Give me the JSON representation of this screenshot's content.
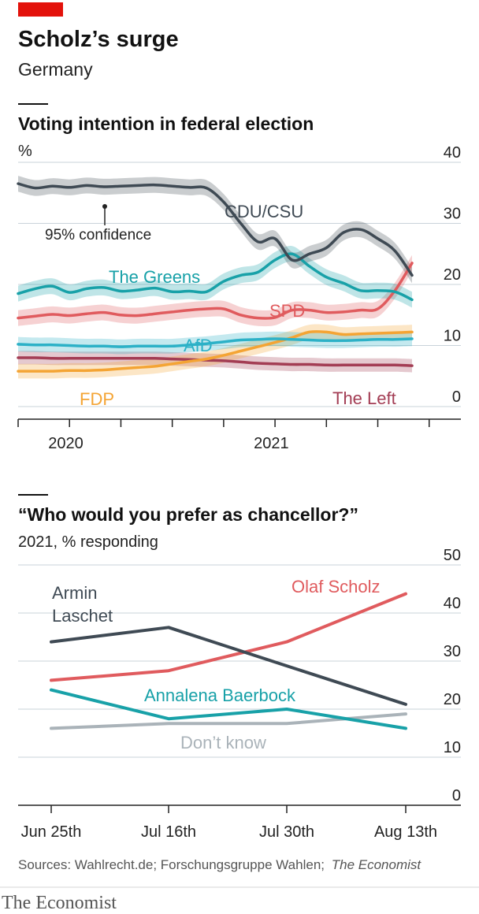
{
  "header": {
    "title": "Scholz’s surge",
    "subtitle": "Germany",
    "brand_color": "#e3120b"
  },
  "chart_data": [
    {
      "type": "line",
      "title": "Voting intention in federal election",
      "unit": "%",
      "ylim": [
        0,
        40
      ],
      "yticks": [
        0,
        10,
        20,
        30,
        40
      ],
      "xtick_labels": [
        "2020",
        "2021"
      ],
      "annotation": "95% confidence",
      "grid": true,
      "series": [
        {
          "name": "CDU/CSU",
          "color": "#3f4a54",
          "band": 1.3,
          "x": [
            "2019-10",
            "2019-11",
            "2019-12",
            "2020-01",
            "2020-02",
            "2020-03",
            "2020-04",
            "2020-05",
            "2020-06",
            "2020-07",
            "2020-08",
            "2020-09",
            "2020-10",
            "2020-11",
            "2020-12",
            "2021-01",
            "2021-02",
            "2021-03",
            "2021-04",
            "2021-05",
            "2021-06",
            "2021-07",
            "2021-08",
            "2021-09"
          ],
          "y": [
            36.5,
            35.8,
            36.1,
            35.9,
            36.2,
            36,
            36.1,
            36.2,
            36.3,
            36.1,
            35.9,
            35.8,
            33.5,
            30,
            27,
            27.5,
            24,
            25,
            26,
            28.5,
            29,
            27.5,
            25.5,
            21.5
          ]
        },
        {
          "name": "The Greens",
          "color": "#18a1a8",
          "band": 1.3,
          "x": [
            "2019-10",
            "2019-11",
            "2019-12",
            "2020-01",
            "2020-02",
            "2020-03",
            "2020-04",
            "2020-05",
            "2020-06",
            "2020-07",
            "2020-08",
            "2020-09",
            "2020-10",
            "2020-11",
            "2020-12",
            "2021-01",
            "2021-02",
            "2021-03",
            "2021-04",
            "2021-05",
            "2021-06",
            "2021-07",
            "2021-08",
            "2021-09"
          ],
          "y": [
            18.5,
            19.3,
            19.7,
            18.7,
            19.3,
            19.5,
            18.9,
            19.1,
            19.4,
            18.8,
            18.9,
            18.8,
            20.5,
            21.5,
            22,
            24,
            25,
            23,
            21.2,
            20.2,
            19,
            19,
            18.8,
            17.5
          ]
        },
        {
          "name": "SPD",
          "color": "#e05b5e",
          "band": 1.3,
          "x": [
            "2019-10",
            "2019-11",
            "2019-12",
            "2020-01",
            "2020-02",
            "2020-03",
            "2020-04",
            "2020-05",
            "2020-06",
            "2020-07",
            "2020-08",
            "2020-09",
            "2020-10",
            "2020-11",
            "2020-12",
            "2021-01",
            "2021-02",
            "2021-03",
            "2021-04",
            "2021-05",
            "2021-06",
            "2021-07",
            "2021-08",
            "2021-09"
          ],
          "y": [
            14.5,
            14.8,
            15.1,
            14.9,
            15.2,
            15.4,
            15,
            14.9,
            15.2,
            15.5,
            15.8,
            16,
            16,
            15,
            14.5,
            14.6,
            15.8,
            15.8,
            15.4,
            15.5,
            15.8,
            16,
            19,
            23.5
          ]
        },
        {
          "name": "AfD",
          "color": "#2cb1c7",
          "band": 1.2,
          "x": [
            "2019-10",
            "2019-11",
            "2019-12",
            "2020-01",
            "2020-02",
            "2020-03",
            "2020-04",
            "2020-05",
            "2020-06",
            "2020-07",
            "2020-08",
            "2020-09",
            "2020-10",
            "2020-11",
            "2020-12",
            "2021-01",
            "2021-02",
            "2021-03",
            "2021-04",
            "2021-05",
            "2021-06",
            "2021-07",
            "2021-08",
            "2021-09"
          ],
          "y": [
            10.2,
            10.1,
            10.1,
            10,
            9.9,
            9.9,
            9.8,
            9.9,
            9.9,
            9.9,
            10.1,
            10.3,
            10.6,
            10.9,
            11,
            11.1,
            11,
            10.9,
            10.8,
            10.8,
            10.9,
            11,
            11,
            11.1
          ]
        },
        {
          "name": "FDP",
          "color": "#f4a434",
          "band": 1.2,
          "x": [
            "2019-10",
            "2019-11",
            "2019-12",
            "2020-01",
            "2020-02",
            "2020-03",
            "2020-04",
            "2020-05",
            "2020-06",
            "2020-07",
            "2020-08",
            "2020-09",
            "2020-10",
            "2020-11",
            "2020-12",
            "2021-01",
            "2021-02",
            "2021-03",
            "2021-04",
            "2021-05",
            "2021-06",
            "2021-07",
            "2021-08",
            "2021-09"
          ],
          "y": [
            5.8,
            5.8,
            5.8,
            5.9,
            5.9,
            6,
            6.2,
            6.4,
            6.6,
            7,
            7.4,
            7.8,
            8.4,
            9.1,
            9.8,
            10.5,
            11.3,
            12.2,
            12.2,
            11.8,
            11.9,
            12,
            12.1,
            12.2
          ]
        },
        {
          "name": "The Left",
          "color": "#a33d54",
          "band": 1.1,
          "x": [
            "2019-10",
            "2019-11",
            "2019-12",
            "2020-01",
            "2020-02",
            "2020-03",
            "2020-04",
            "2020-05",
            "2020-06",
            "2020-07",
            "2020-08",
            "2020-09",
            "2020-10",
            "2020-11",
            "2020-12",
            "2021-01",
            "2021-02",
            "2021-03",
            "2021-04",
            "2021-05",
            "2021-06",
            "2021-07",
            "2021-08",
            "2021-09"
          ],
          "y": [
            8,
            8,
            7.9,
            7.9,
            7.9,
            7.9,
            7.9,
            7.9,
            7.9,
            7.8,
            7.7,
            7.6,
            7.5,
            7.3,
            7.1,
            7,
            6.9,
            6.9,
            6.8,
            6.8,
            6.8,
            6.8,
            6.8,
            6.7
          ]
        }
      ]
    },
    {
      "type": "line",
      "title": "“Who would you prefer as chancellor?”",
      "subtitle": "2021, % responding",
      "ylim": [
        0,
        50
      ],
      "yticks": [
        0,
        10,
        20,
        30,
        40,
        50
      ],
      "categories": [
        "Jun 25th",
        "Jul 16th",
        "Jul 30th",
        "Aug 13th"
      ],
      "grid": true,
      "series": [
        {
          "name": "Armin Laschet",
          "label_lines": [
            "Armin",
            "Laschet"
          ],
          "color": "#3f4a54",
          "values": [
            34,
            37,
            29,
            21
          ]
        },
        {
          "name": "Olaf Scholz",
          "color": "#e05b5e",
          "values": [
            26,
            28,
            34,
            44
          ]
        },
        {
          "name": "Annalena Baerbock",
          "color": "#18a1a8",
          "values": [
            24,
            18,
            20,
            16
          ]
        },
        {
          "name": "Don’t know",
          "color": "#aab3b9",
          "values": [
            16,
            17,
            17,
            19
          ]
        }
      ]
    }
  ],
  "footer": {
    "sources_label": "Sources: Wahlrecht.de; Forschungsgruppe Wahlen;",
    "sources_italic": "The Economist",
    "brand": "The Economist"
  }
}
